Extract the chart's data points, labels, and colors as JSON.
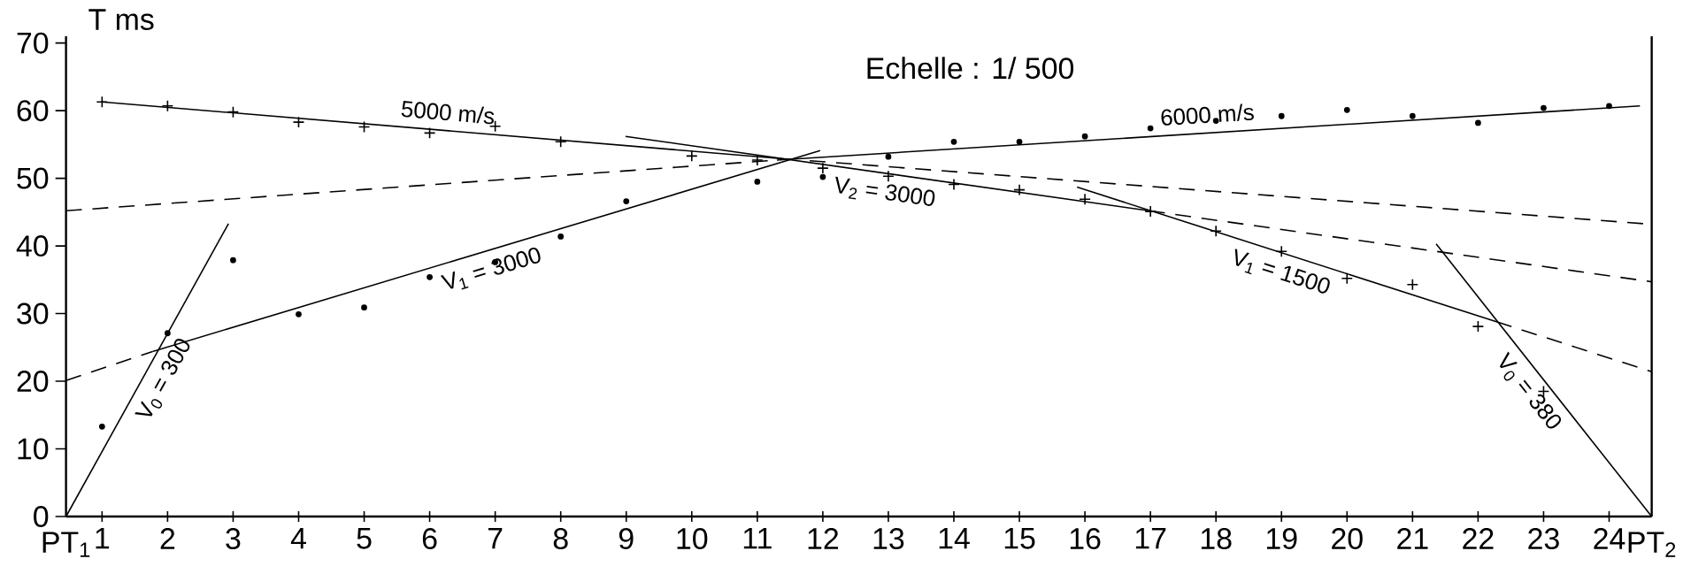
{
  "chart_data": {
    "type": "line",
    "ylabel": "T ms",
    "annotations": [
      "Echelle : 1/ 500",
      {
        "text": "PT$_{1}$",
        "x": 0.45,
        "y": 0
      },
      {
        "text": "PT$_{2}$",
        "x": 24.65,
        "y": 0
      }
    ],
    "xlim": [
      0.45,
      24.65
    ],
    "ylim": [
      0,
      71
    ],
    "xticks": [
      1,
      2,
      3,
      4,
      5,
      6,
      7,
      8,
      9,
      10,
      11,
      12,
      13,
      14,
      15,
      16,
      17,
      18,
      19,
      20,
      21,
      22,
      23,
      24
    ],
    "yticks": [
      0,
      10,
      20,
      30,
      40,
      50,
      60,
      70
    ],
    "series": [
      {
        "type": "scatter",
        "marker": "cross",
        "color": "#000000",
        "x": [
          1,
          2,
          3,
          4,
          5,
          6,
          7,
          8,
          10,
          11,
          12,
          13,
          14,
          15,
          16,
          17,
          18,
          19,
          20,
          21,
          22,
          23
        ],
        "values": [
          61.3,
          60.7,
          59.8,
          58.3,
          57.6,
          56.7,
          57.7,
          55.4,
          53.3,
          52.7,
          51.5,
          50.3,
          49.1,
          48.3,
          46.9,
          45.1,
          42.2,
          39.2,
          35.2,
          34.3,
          28.1,
          18.5
        ]
      },
      {
        "type": "scatter",
        "marker": "circle",
        "color": "#000000",
        "x": [
          1,
          2,
          3,
          4,
          5,
          6,
          7,
          8,
          9,
          11,
          12,
          13,
          14,
          15,
          16,
          17,
          18,
          19,
          20,
          21,
          22,
          23,
          24
        ],
        "values": [
          13.3,
          27.1,
          37.9,
          29.9,
          30.9,
          35.4,
          37.6,
          41.4,
          46.6,
          49.5,
          50.2,
          53.2,
          55.4,
          55.4,
          56.2,
          57.4,
          58.5,
          59.2,
          60.1,
          59.2,
          58.2,
          60.4,
          60.7
        ]
      },
      {
        "name": "V$_{0}$ = 300",
        "color": "#000000",
        "line_style": "solid",
        "x": [
          0.45,
          2.93
        ],
        "values": [
          0,
          43.3
        ]
      },
      {
        "color": "#000000",
        "line_style": "dashed",
        "x": [
          0.45,
          1.77
        ],
        "values": [
          20.1,
          24.4
        ]
      },
      {
        "name": "V$_{1}$ = 3000",
        "color": "#000000",
        "line_style": "solid",
        "x": [
          1.77,
          11.96
        ],
        "values": [
          24.4,
          54.1
        ]
      },
      {
        "name": "6000 m/s",
        "color": "#000000",
        "line_style": "solid",
        "x": [
          11.3,
          24.47
        ],
        "values": [
          52.7,
          60.7
        ]
      },
      {
        "color": "#000000",
        "line_style": "dashed",
        "x": [
          0.45,
          11.3
        ],
        "values": [
          45.2,
          52.7
        ]
      },
      {
        "name": "5000 m/s",
        "color": "#000000",
        "line_style": "solid",
        "x": [
          1,
          11.51
        ],
        "values": [
          61.3,
          52.8
        ]
      },
      {
        "color": "#000000",
        "line_style": "dashed",
        "x": [
          11.8,
          24.65
        ],
        "values": [
          52.6,
          43.2
        ]
      },
      {
        "name": "V$_{2}$ = 3000",
        "color": "#000000",
        "line_style": "solid",
        "x": [
          8.99,
          16.98
        ],
        "values": [
          56.2,
          45.2
        ]
      },
      {
        "color": "#000000",
        "line_style": "dashed",
        "x": [
          16.98,
          24.65
        ],
        "values": [
          45.2,
          34.7
        ]
      },
      {
        "name": "V$_{1}$ = 1500",
        "color": "#000000",
        "line_style": "solid",
        "x": [
          15.88,
          22.28
        ],
        "values": [
          48.7,
          28.8
        ]
      },
      {
        "color": "#000000",
        "line_style": "dashed",
        "x": [
          22.28,
          24.65
        ],
        "values": [
          28.8,
          21.4
        ]
      },
      {
        "name": "V$_{0}$ = 380",
        "color": "#000000",
        "line_style": "solid",
        "x": [
          21.36,
          24.65
        ],
        "values": [
          40.3,
          0
        ]
      }
    ]
  }
}
